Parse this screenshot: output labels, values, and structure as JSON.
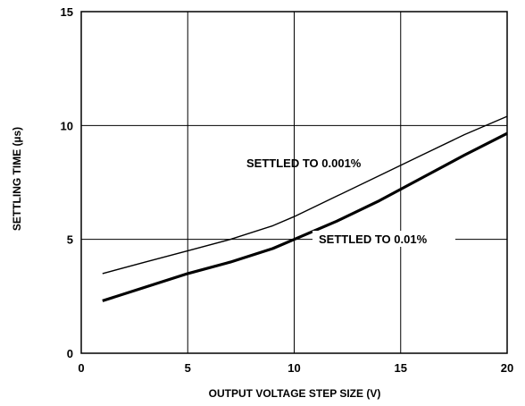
{
  "chart_data": {
    "type": "line",
    "xlabel": "OUTPUT VOLTAGE STEP SIZE (V)",
    "ylabel": "SETTLING TIME (µs)",
    "xlim": [
      0,
      20
    ],
    "ylim": [
      0,
      15
    ],
    "xticks": [
      "0",
      "5",
      "10",
      "15",
      "20"
    ],
    "yticks": [
      "0",
      "5",
      "10",
      "15"
    ],
    "grid": true,
    "series": [
      {
        "name": "SETTLED TO 0.001%",
        "x": [
          1,
          3,
          5,
          7,
          9,
          10,
          12,
          14,
          16,
          18,
          20
        ],
        "y": [
          3.5,
          4.0,
          4.5,
          5.0,
          5.6,
          6.0,
          6.9,
          7.8,
          8.7,
          9.6,
          10.4
        ]
      },
      {
        "name": "SETTLED TO 0.01%",
        "x": [
          1,
          3,
          5,
          7,
          9,
          10,
          12,
          14,
          16,
          18,
          20
        ],
        "y": [
          2.3,
          2.9,
          3.5,
          4.0,
          4.6,
          5.0,
          5.8,
          6.7,
          7.7,
          8.7,
          9.65
        ]
      }
    ],
    "annotations": [
      {
        "text": "SETTLED TO 0.001%",
        "series": 0
      },
      {
        "text": "SETTLED TO 0.01%",
        "series": 1
      }
    ]
  }
}
